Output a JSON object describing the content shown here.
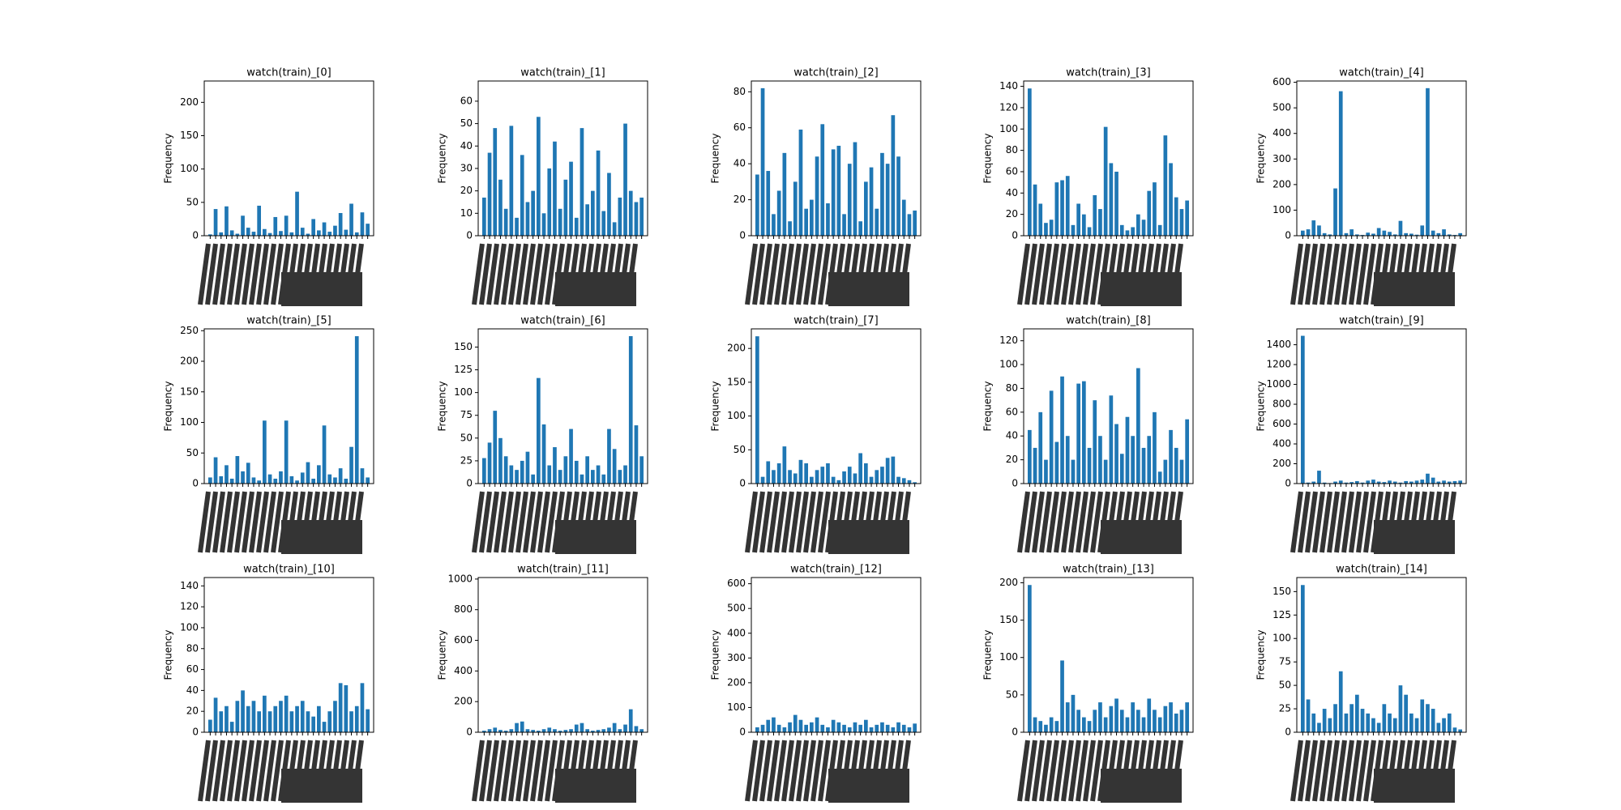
{
  "chart_data": [
    {
      "type": "bar",
      "title": "watch(train)_[0]",
      "ylabel": "Frequency",
      "color": "#1f77b4",
      "ylim": [
        0,
        232
      ],
      "yticks": [
        0,
        50,
        100,
        150,
        200
      ],
      "values": [
        2,
        40,
        5,
        44,
        8,
        3,
        30,
        12,
        6,
        45,
        10,
        4,
        28,
        7,
        30,
        5,
        66,
        12,
        3,
        25,
        8,
        20,
        6,
        15,
        34,
        9,
        48,
        5,
        35,
        18
      ]
    },
    {
      "type": "bar",
      "title": "watch(train)_[1]",
      "ylabel": "Frequency",
      "color": "#1f77b4",
      "ylim": [
        0,
        69
      ],
      "yticks": [
        0,
        10,
        20,
        30,
        40,
        50,
        60
      ],
      "values": [
        17,
        37,
        48,
        25,
        12,
        49,
        8,
        36,
        15,
        20,
        53,
        10,
        30,
        42,
        12,
        25,
        33,
        8,
        48,
        14,
        20,
        38,
        11,
        28,
        6,
        17,
        50,
        20,
        15,
        17
      ]
    },
    {
      "type": "bar",
      "title": "watch(train)_[2]",
      "ylabel": "Frequency",
      "color": "#1f77b4",
      "ylim": [
        0,
        86
      ],
      "yticks": [
        0,
        20,
        40,
        60,
        80
      ],
      "values": [
        34,
        82,
        36,
        12,
        25,
        46,
        8,
        30,
        59,
        15,
        20,
        44,
        62,
        18,
        48,
        50,
        12,
        40,
        52,
        8,
        30,
        38,
        15,
        46,
        40,
        67,
        44,
        20,
        12,
        14
      ]
    },
    {
      "type": "bar",
      "title": "watch(train)_[3]",
      "ylabel": "Frequency",
      "color": "#1f77b4",
      "ylim": [
        0,
        145
      ],
      "yticks": [
        0,
        20,
        40,
        60,
        80,
        100,
        120,
        140
      ],
      "values": [
        138,
        48,
        30,
        12,
        15,
        50,
        52,
        56,
        10,
        30,
        20,
        8,
        38,
        25,
        102,
        68,
        60,
        10,
        5,
        8,
        20,
        15,
        42,
        50,
        10,
        94,
        68,
        36,
        25,
        33
      ]
    },
    {
      "type": "bar",
      "title": "watch(train)_[4]",
      "ylabel": "Frequency",
      "color": "#1f77b4",
      "ylim": [
        0,
        605
      ],
      "yticks": [
        0,
        100,
        200,
        300,
        400,
        500,
        600
      ],
      "values": [
        20,
        25,
        60,
        40,
        10,
        5,
        185,
        565,
        10,
        25,
        5,
        3,
        12,
        8,
        30,
        20,
        15,
        5,
        58,
        10,
        8,
        4,
        40,
        577,
        20,
        10,
        25,
        5,
        3,
        10
      ]
    },
    {
      "type": "bar",
      "title": "watch(train)_[5]",
      "ylabel": "Frequency",
      "color": "#1f77b4",
      "ylim": [
        0,
        253
      ],
      "yticks": [
        0,
        50,
        100,
        150,
        200,
        250
      ],
      "values": [
        10,
        43,
        12,
        30,
        8,
        45,
        20,
        34,
        10,
        5,
        103,
        15,
        8,
        20,
        103,
        12,
        5,
        18,
        35,
        8,
        30,
        95,
        15,
        10,
        25,
        8,
        60,
        241,
        25,
        10
      ]
    },
    {
      "type": "bar",
      "title": "watch(train)_[6]",
      "ylabel": "Frequency",
      "color": "#1f77b4",
      "ylim": [
        0,
        170
      ],
      "yticks": [
        0,
        25,
        50,
        75,
        100,
        125,
        150
      ],
      "values": [
        28,
        45,
        80,
        50,
        30,
        20,
        15,
        25,
        35,
        10,
        116,
        65,
        20,
        40,
        15,
        30,
        60,
        25,
        10,
        30,
        15,
        20,
        10,
        60,
        38,
        15,
        20,
        162,
        64,
        30
      ]
    },
    {
      "type": "bar",
      "title": "watch(train)_[7]",
      "ylabel": "Frequency",
      "color": "#1f77b4",
      "ylim": [
        0,
        229
      ],
      "yticks": [
        0,
        50,
        100,
        150,
        200
      ],
      "values": [
        218,
        10,
        33,
        20,
        30,
        55,
        20,
        15,
        35,
        30,
        10,
        20,
        25,
        30,
        10,
        5,
        18,
        25,
        15,
        45,
        30,
        10,
        20,
        25,
        38,
        40,
        10,
        8,
        5,
        2
      ]
    },
    {
      "type": "bar",
      "title": "watch(train)_[8]",
      "ylabel": "Frequency",
      "color": "#1f77b4",
      "ylim": [
        0,
        130
      ],
      "yticks": [
        0,
        20,
        40,
        60,
        80,
        100,
        120
      ],
      "values": [
        45,
        30,
        60,
        20,
        78,
        35,
        90,
        40,
        20,
        84,
        86,
        30,
        70,
        40,
        20,
        74,
        50,
        25,
        56,
        40,
        97,
        30,
        40,
        60,
        10,
        20,
        45,
        30,
        20,
        54
      ]
    },
    {
      "type": "bar",
      "title": "watch(train)_[9]",
      "ylabel": "Frequency",
      "color": "#1f77b4",
      "ylim": [
        0,
        1560
      ],
      "yticks": [
        0,
        200,
        400,
        600,
        800,
        1000,
        1200,
        1400
      ],
      "values": [
        1490,
        10,
        20,
        130,
        10,
        5,
        20,
        30,
        10,
        15,
        25,
        10,
        30,
        40,
        20,
        15,
        30,
        20,
        10,
        25,
        20,
        30,
        40,
        100,
        60,
        20,
        30,
        20,
        25,
        30
      ]
    },
    {
      "type": "bar",
      "title": "watch(train)_[10]",
      "ylabel": "Frequency",
      "color": "#1f77b4",
      "ylim": [
        0,
        148
      ],
      "yticks": [
        0,
        20,
        40,
        60,
        80,
        100,
        120,
        140
      ],
      "values": [
        12,
        33,
        20,
        25,
        10,
        30,
        40,
        25,
        30,
        20,
        35,
        20,
        25,
        30,
        35,
        20,
        25,
        30,
        20,
        15,
        25,
        10,
        20,
        30,
        47,
        45,
        20,
        25,
        47,
        22
      ]
    },
    {
      "type": "bar",
      "title": "watch(train)_[11]",
      "ylabel": "Frequency",
      "color": "#1f77b4",
      "ylim": [
        0,
        1010
      ],
      "yticks": [
        0,
        200,
        400,
        600,
        800,
        1000
      ],
      "values": [
        10,
        20,
        30,
        15,
        10,
        20,
        60,
        70,
        20,
        15,
        10,
        20,
        30,
        20,
        10,
        15,
        20,
        50,
        60,
        20,
        10,
        15,
        20,
        30,
        60,
        20,
        50,
        150,
        40,
        20
      ]
    },
    {
      "type": "bar",
      "title": "watch(train)_[12]",
      "ylabel": "Frequency",
      "color": "#1f77b4",
      "ylim": [
        0,
        625
      ],
      "yticks": [
        0,
        100,
        200,
        300,
        400,
        500,
        600
      ],
      "values": [
        20,
        30,
        50,
        60,
        30,
        20,
        40,
        70,
        50,
        30,
        40,
        60,
        30,
        20,
        50,
        40,
        30,
        20,
        40,
        30,
        50,
        20,
        30,
        40,
        30,
        20,
        40,
        30,
        20,
        35
      ]
    },
    {
      "type": "bar",
      "title": "watch(train)_[13]",
      "ylabel": "Frequency",
      "color": "#1f77b4",
      "ylim": [
        0,
        207
      ],
      "yticks": [
        0,
        50,
        100,
        150,
        200
      ],
      "values": [
        197,
        20,
        15,
        10,
        20,
        15,
        96,
        40,
        50,
        30,
        20,
        15,
        30,
        40,
        20,
        35,
        45,
        30,
        20,
        40,
        30,
        20,
        45,
        30,
        20,
        35,
        40,
        25,
        30,
        40
      ]
    },
    {
      "type": "bar",
      "title": "watch(train)_[14]",
      "ylabel": "Frequency",
      "color": "#1f77b4",
      "ylim": [
        0,
        165
      ],
      "yticks": [
        0,
        25,
        50,
        75,
        100,
        125,
        150
      ],
      "values": [
        157,
        35,
        20,
        10,
        25,
        15,
        30,
        65,
        20,
        30,
        40,
        25,
        20,
        15,
        10,
        30,
        20,
        15,
        50,
        40,
        20,
        15,
        35,
        30,
        25,
        10,
        15,
        20,
        5,
        3
      ]
    }
  ]
}
